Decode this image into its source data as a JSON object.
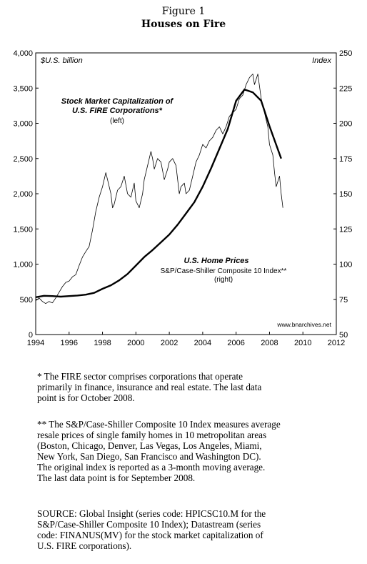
{
  "figure": {
    "label": "Figure 1",
    "title": "Houses on Fire"
  },
  "chart_data": {
    "type": "line",
    "left_axis": {
      "unit_label": "$U.S. billion",
      "range": [
        0,
        4000
      ],
      "ticks": [
        "0",
        "500",
        "1,000",
        "1,500",
        "2,000",
        "2,500",
        "3,000",
        "3,500",
        "4,000"
      ]
    },
    "right_axis": {
      "unit_label": "Index",
      "range": [
        50,
        250
      ],
      "ticks": [
        "50",
        "75",
        "100",
        "125",
        "150",
        "175",
        "200",
        "225",
        "250"
      ]
    },
    "x_axis": {
      "range": [
        1994,
        2012
      ],
      "ticks": [
        "1994",
        "1996",
        "1998",
        "2000",
        "2002",
        "2004",
        "2006",
        "2008",
        "2010",
        "2012"
      ]
    },
    "grid": false,
    "series": [
      {
        "name": "Stock Market Capitalization of U.S. FIRE Corporations*",
        "sublabel": "(left)",
        "axis": "left",
        "color": "#000000",
        "points": [
          [
            1994.0,
            480
          ],
          [
            1994.2,
            520
          ],
          [
            1994.4,
            470
          ],
          [
            1994.6,
            440
          ],
          [
            1994.8,
            470
          ],
          [
            1995.0,
            450
          ],
          [
            1995.2,
            520
          ],
          [
            1995.4,
            600
          ],
          [
            1995.6,
            680
          ],
          [
            1995.8,
            740
          ],
          [
            1996.0,
            760
          ],
          [
            1996.2,
            820
          ],
          [
            1996.4,
            850
          ],
          [
            1996.6,
            980
          ],
          [
            1996.8,
            1100
          ],
          [
            1997.0,
            1180
          ],
          [
            1997.2,
            1250
          ],
          [
            1997.4,
            1480
          ],
          [
            1997.6,
            1750
          ],
          [
            1997.8,
            1950
          ],
          [
            1998.0,
            2100
          ],
          [
            1998.2,
            2300
          ],
          [
            1998.3,
            2200
          ],
          [
            1998.5,
            2000
          ],
          [
            1998.6,
            1800
          ],
          [
            1998.7,
            1850
          ],
          [
            1998.9,
            2050
          ],
          [
            1999.1,
            2100
          ],
          [
            1999.3,
            2250
          ],
          [
            1999.5,
            2000
          ],
          [
            1999.7,
            1950
          ],
          [
            1999.9,
            2150
          ],
          [
            2000.0,
            1900
          ],
          [
            2000.2,
            1800
          ],
          [
            2000.4,
            2000
          ],
          [
            2000.5,
            2200
          ],
          [
            2000.7,
            2400
          ],
          [
            2000.9,
            2600
          ],
          [
            2001.0,
            2500
          ],
          [
            2001.1,
            2350
          ],
          [
            2001.3,
            2500
          ],
          [
            2001.5,
            2450
          ],
          [
            2001.7,
            2200
          ],
          [
            2001.9,
            2350
          ],
          [
            2002.0,
            2450
          ],
          [
            2002.2,
            2500
          ],
          [
            2002.4,
            2400
          ],
          [
            2002.5,
            2200
          ],
          [
            2002.6,
            2000
          ],
          [
            2002.7,
            2100
          ],
          [
            2002.9,
            2150
          ],
          [
            2003.0,
            2000
          ],
          [
            2003.2,
            2050
          ],
          [
            2003.4,
            2250
          ],
          [
            2003.6,
            2450
          ],
          [
            2003.8,
            2550
          ],
          [
            2004.0,
            2700
          ],
          [
            2004.2,
            2650
          ],
          [
            2004.4,
            2750
          ],
          [
            2004.6,
            2800
          ],
          [
            2004.8,
            2900
          ],
          [
            2005.0,
            2950
          ],
          [
            2005.2,
            2850
          ],
          [
            2005.4,
            2950
          ],
          [
            2005.6,
            3100
          ],
          [
            2005.8,
            3150
          ],
          [
            2006.0,
            3200
          ],
          [
            2006.2,
            3350
          ],
          [
            2006.4,
            3400
          ],
          [
            2006.6,
            3550
          ],
          [
            2006.8,
            3650
          ],
          [
            2007.0,
            3700
          ],
          [
            2007.1,
            3550
          ],
          [
            2007.3,
            3700
          ],
          [
            2007.5,
            3350
          ],
          [
            2007.7,
            3150
          ],
          [
            2007.9,
            2950
          ],
          [
            2008.0,
            2700
          ],
          [
            2008.2,
            2550
          ],
          [
            2008.3,
            2300
          ],
          [
            2008.4,
            2100
          ],
          [
            2008.6,
            2250
          ],
          [
            2008.7,
            2000
          ],
          [
            2008.8,
            1800
          ]
        ]
      },
      {
        "name": "U.S. Home Prices",
        "sublabel": "S&P/Case-Shiller Composite 10 Index**",
        "sublabel2": "(right)",
        "axis": "right",
        "color": "#000000",
        "points": [
          [
            1994.0,
            76.5
          ],
          [
            1994.5,
            77.5
          ],
          [
            1995.0,
            77.3
          ],
          [
            1995.5,
            76.9
          ],
          [
            1996.0,
            77.3
          ],
          [
            1996.5,
            77.7
          ],
          [
            1997.0,
            78.3
          ],
          [
            1997.5,
            79.6
          ],
          [
            1998.0,
            82.5
          ],
          [
            1998.5,
            85.0
          ],
          [
            1999.0,
            88.5
          ],
          [
            1999.5,
            93.0
          ],
          [
            2000.0,
            99.0
          ],
          [
            2000.5,
            105.0
          ],
          [
            2001.0,
            110.0
          ],
          [
            2001.5,
            115.5
          ],
          [
            2002.0,
            121.0
          ],
          [
            2002.5,
            128.0
          ],
          [
            2003.0,
            136.0
          ],
          [
            2003.5,
            144.0
          ],
          [
            2004.0,
            155.0
          ],
          [
            2004.5,
            168.0
          ],
          [
            2005.0,
            182.0
          ],
          [
            2005.5,
            196.0
          ],
          [
            2006.0,
            216.0
          ],
          [
            2006.5,
            224.0
          ],
          [
            2007.0,
            222.0
          ],
          [
            2007.5,
            216.0
          ],
          [
            2008.0,
            198.0
          ],
          [
            2008.3,
            188.0
          ],
          [
            2008.7,
            175.0
          ]
        ]
      }
    ],
    "annotations": {
      "stock_title_line1": "Stock Market Capitalization of",
      "stock_title_line2": "U.S. FIRE Corporations*",
      "stock_sub": "(left)",
      "home_title": "U.S. Home Prices",
      "home_sub": "S&P/Case-Shiller Composite 10 Index**",
      "home_sub2": "(right)",
      "source_tag": "www.bnarchives.net"
    }
  },
  "notes": {
    "fire_note": "* The FIRE sector comprises corporations that operate\nprimarily in finance, insurance and real estate. The last data\npoint is for October 2008.",
    "index_note": "** The S&P/Case-Shiller Composite 10 Index measures average\nresale prices of single family homes in 10 metropolitan areas\n(Boston, Chicago, Denver, Las Vegas, Los Angeles, Miami,\nNew York, San Diego, San Francisco and Washington DC).\nThe original index is reported as a 3-month moving average.\nThe last data point is for September 2008.",
    "source_note": "SOURCE: Global Insight (series code: HPICSC10.M for the\nS&P/Case-Shiller Composite 10 Index); Datastream (series\ncode: FINANUS(MV) for the stock market capitalization of\nU.S. FIRE corporations)."
  }
}
